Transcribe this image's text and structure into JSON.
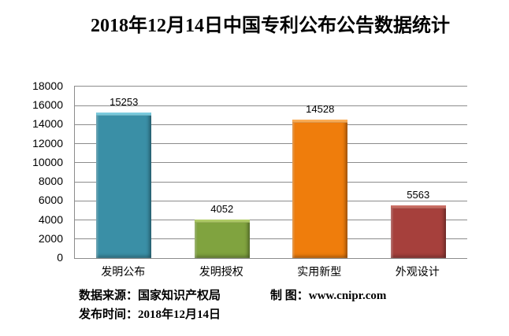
{
  "title": "2018年12月14日中国专利公布公告数据统计",
  "chart_data": {
    "type": "bar",
    "title": "2018年12月14日中国专利公布公告数据统计",
    "categories": [
      "发明公布",
      "发明授权",
      "实用新型",
      "外观设计"
    ],
    "values": [
      15253,
      4052,
      14528,
      5563
    ],
    "bar_colors": [
      "#3A8FA6",
      "#80A33F",
      "#EF7D0C",
      "#A6403C"
    ],
    "bar_colors_light": [
      "#7BCBDE",
      "#AFCB66",
      "#FBAC55",
      "#C96E64"
    ],
    "xlabel": "",
    "ylabel": "",
    "ylim": [
      0,
      18000
    ],
    "yticks": [
      0,
      2000,
      4000,
      6000,
      8000,
      10000,
      12000,
      14000,
      16000,
      18000
    ],
    "grid": true,
    "gridline_color": "#8C8C8C",
    "legend_position": "none"
  },
  "footer": {
    "source_label": "数据来源：国家知识产权局",
    "chart_by_label": "制 图：www.cnipr.com",
    "publish_label": "发布时间：2018年12月14日"
  }
}
